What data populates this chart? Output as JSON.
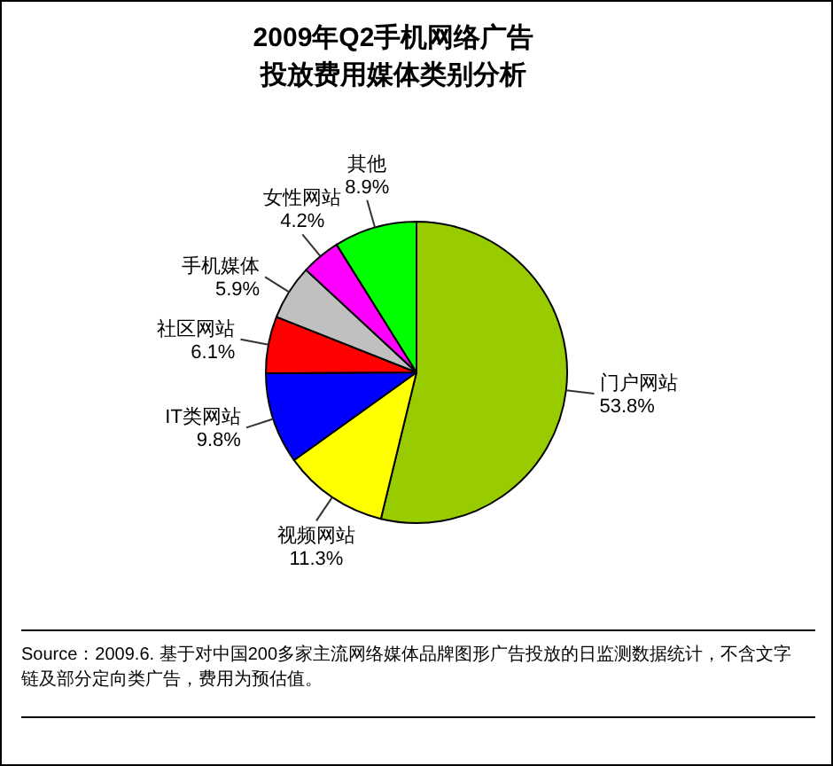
{
  "chart_data": {
    "type": "pie",
    "title": "2009年Q2手机网络广告投放费用媒体类别分析",
    "categories": [
      "门户网站",
      "视频网站",
      "IT类网站",
      "社区网站",
      "手机媒体",
      "女性网站",
      "其他"
    ],
    "values": [
      53.8,
      11.3,
      9.8,
      6.1,
      5.9,
      4.2,
      8.9
    ],
    "colors": [
      "#99cc00",
      "#ffff00",
      "#0000ff",
      "#ff0000",
      "#c0c0c0",
      "#ff00ff",
      "#00ff00"
    ],
    "value_labels": [
      "53.8%",
      "11.3%",
      "9.8%",
      "6.1%",
      "5.9%",
      "4.2%",
      "8.9%"
    ],
    "annotations": [
      "Source：2009.6. 基于对中国200多家主流网络媒体品牌图形广告投放的日监测数据统计，不含文字链及部分定向类广告，费用为预估值。"
    ]
  }
}
